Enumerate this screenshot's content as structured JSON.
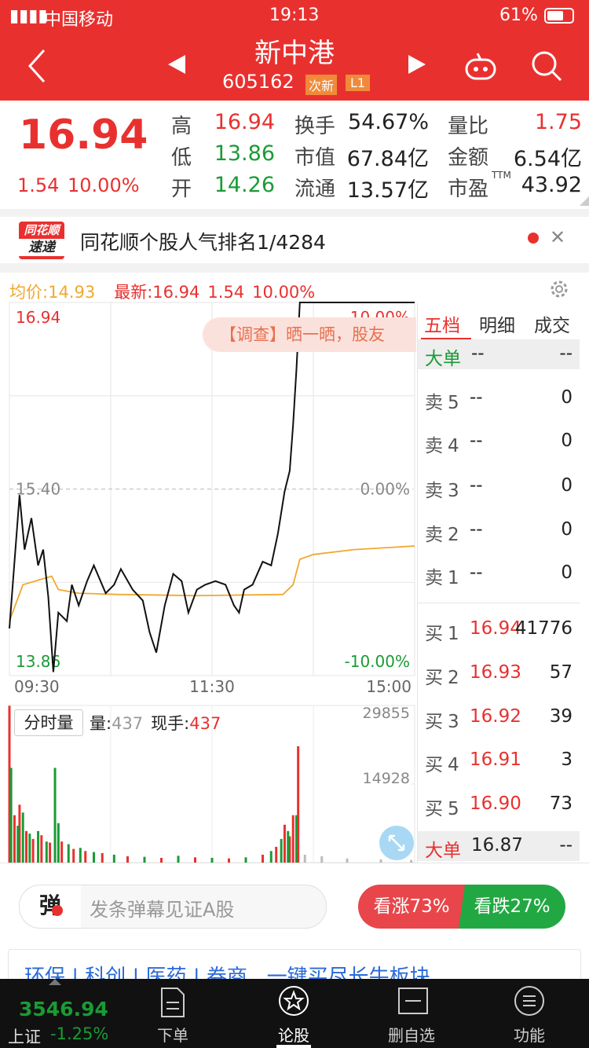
{
  "status_bar": {
    "carrier": "中国移动",
    "time": "19:13",
    "battery": "61%"
  },
  "header": {
    "title": "新中港",
    "code": "605162",
    "tags": [
      "次新",
      "L1"
    ]
  },
  "quote": {
    "price": "16.94",
    "change": "1.54",
    "pct": "10.00%",
    "stats": [
      {
        "label": "高",
        "value": "16.94"
      },
      {
        "label": "换手",
        "value": "54.67%"
      },
      {
        "label": "量比",
        "value": "1.75"
      },
      {
        "label": "低",
        "value": "13.86"
      },
      {
        "label": "市值",
        "value": "67.84亿"
      },
      {
        "label": "金额",
        "value": "6.54亿"
      },
      {
        "label": "开",
        "value": "14.26"
      },
      {
        "label": "流通",
        "value": "13.57亿"
      },
      {
        "label": "市盈",
        "sup": "TTM",
        "value": "43.92"
      }
    ]
  },
  "banner": {
    "logo": [
      "同花顺",
      "速递"
    ],
    "text": "同花顺个股人气排名1/4284"
  },
  "chart_data": [
    {
      "type": "line",
      "labels": {
        "avg_label": "均价:",
        "avg_value": "14.93",
        "latest_label": "最新:",
        "latest_value": "16.94",
        "change": "1.54",
        "pct": "10.00%"
      },
      "xlim": [
        0,
        240
      ],
      "xticks": [
        {
          "value": 0,
          "label": "09:30"
        },
        {
          "value": 120,
          "label": "11:30"
        },
        {
          "value": 240,
          "label": "15:00"
        }
      ],
      "xgrid": [
        60,
        120,
        180
      ],
      "ylim": [
        13.86,
        16.94
      ],
      "yticks": [
        16.94,
        {
          "value": 15.4,
          "label": "15.40"
        },
        13.86
      ],
      "ygrid": [
        16.17,
        14.63
      ],
      "y2lim": [
        -10,
        10
      ],
      "y2ticks": [
        {
          "value": 10,
          "label": "10.00%"
        },
        {
          "value": 0,
          "label": "0.00%"
        },
        {
          "value": -10,
          "label": "-10.00%"
        }
      ],
      "grid": true,
      "series": [
        {
          "color": "#111111",
          "x": [
            0,
            6,
            9,
            13,
            17,
            20,
            23,
            26,
            29,
            34,
            37,
            41,
            46,
            50,
            57,
            62,
            66,
            73,
            79,
            83,
            87,
            92,
            97,
            102,
            106,
            111,
            116,
            122,
            128,
            133,
            136,
            139,
            144,
            150,
            155,
            159,
            163,
            166,
            168,
            170,
            172,
            240
          ],
          "values": [
            14.25,
            15.35,
            14.9,
            15.16,
            14.77,
            14.9,
            14.51,
            13.89,
            14.38,
            14.31,
            14.61,
            14.44,
            14.64,
            14.77,
            14.54,
            14.61,
            14.74,
            14.57,
            14.48,
            14.22,
            14.05,
            14.44,
            14.7,
            14.64,
            14.38,
            14.57,
            14.61,
            14.64,
            14.61,
            14.44,
            14.38,
            14.57,
            14.61,
            14.8,
            14.77,
            15.03,
            15.38,
            15.55,
            15.93,
            16.39,
            16.94,
            16.94
          ]
        },
        {
          "color": "#f0a830",
          "x": [
            0,
            8,
            25,
            29,
            41,
            64,
            111,
            162,
            168,
            172,
            180,
            204,
            240
          ],
          "values": [
            14.31,
            14.61,
            14.68,
            14.57,
            14.54,
            14.53,
            14.52,
            14.53,
            14.61,
            14.82,
            14.86,
            14.9,
            14.93
          ]
        }
      ]
    },
    {
      "type": "bar",
      "title": "分时量",
      "labels": {
        "vol_label": "量:",
        "vol_value": "437",
        "hand_label": "现手:",
        "hand_value": "437"
      },
      "xlim": [
        0,
        240
      ],
      "ylim": [
        0,
        29855
      ],
      "yticks": [
        29855,
        14928
      ],
      "series": [
        {
          "color": "#e8312f",
          "x": [
            0,
            3,
            6,
            10,
            14,
            19,
            24,
            31,
            38,
            45,
            55,
            70,
            90,
            110,
            130,
            150,
            158,
            163,
            166,
            168,
            171
          ],
          "values": [
            29800,
            9000,
            11000,
            6000,
            4500,
            5200,
            3800,
            4000,
            2600,
            2200,
            1800,
            1200,
            900,
            1000,
            800,
            1500,
            3000,
            7200,
            5000,
            9000,
            22100
          ]
        },
        {
          "color": "#1a9b35",
          "x": [
            1,
            5,
            8,
            12,
            17,
            22,
            27,
            29,
            35,
            42,
            50,
            62,
            80,
            100,
            120,
            140,
            155,
            161,
            165,
            170
          ],
          "values": [
            18000,
            7000,
            9500,
            5500,
            6000,
            4000,
            18000,
            7500,
            3500,
            2800,
            2000,
            1500,
            1100,
            1300,
            900,
            1000,
            2200,
            4500,
            6000,
            9000
          ]
        },
        {
          "color": "#bbbbbb",
          "x": [
            175,
            185,
            200,
            220,
            238
          ],
          "values": [
            1500,
            1200,
            800,
            600,
            500
          ]
        }
      ]
    }
  ],
  "overlay": "【调查】晒一晒，股友",
  "order_book": {
    "tabs": [
      "五档",
      "明细",
      "成交"
    ],
    "rows": [
      {
        "label": "大单",
        "price": "--",
        "volume": "--"
      },
      {
        "label": "卖5",
        "price": "--",
        "volume": "0"
      },
      {
        "label": "卖4",
        "price": "--",
        "volume": "0"
      },
      {
        "label": "卖3",
        "price": "--",
        "volume": "0"
      },
      {
        "label": "卖2",
        "price": "--",
        "volume": "0"
      },
      {
        "label": "卖1",
        "price": "--",
        "volume": "0"
      },
      {
        "label": "买1",
        "price": "16.94",
        "volume": "41776"
      },
      {
        "label": "买2",
        "price": "16.93",
        "volume": "57"
      },
      {
        "label": "买3",
        "price": "16.92",
        "volume": "39"
      },
      {
        "label": "买4",
        "price": "16.91",
        "volume": "3"
      },
      {
        "label": "买5",
        "price": "16.90",
        "volume": "73"
      },
      {
        "label": "大单",
        "price": "16.87",
        "volume": "--"
      }
    ]
  },
  "comment": {
    "button": "弹",
    "placeholder": "发条弹幕见证A股",
    "bull": "看涨73%",
    "bear": "看跌27%"
  },
  "promo": "环保 | 科创 | 医药 | 券商   一键买尽长牛板块",
  "bottom_nav": {
    "index_value": "3546.94",
    "index_name": "上证",
    "index_pct": "-1.25%",
    "tabs": [
      "下单",
      "论股",
      "删自选",
      "功能"
    ]
  }
}
